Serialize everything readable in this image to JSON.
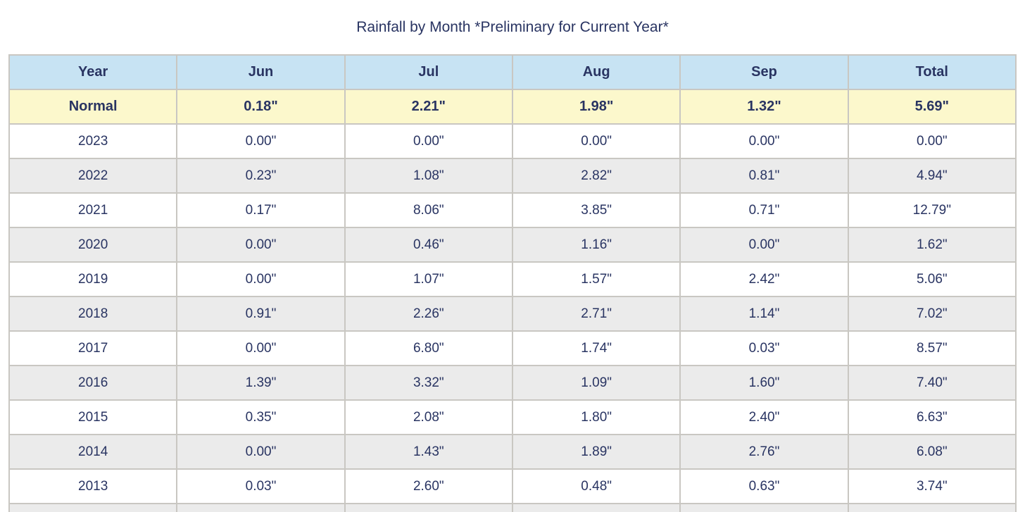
{
  "page": {
    "title": "Rainfall by Month *Preliminary for Current Year*"
  },
  "table": {
    "headers": [
      "Year",
      "Jun",
      "Jul",
      "Aug",
      "Sep",
      "Total"
    ],
    "normal_row": [
      "Normal",
      "0.18\"",
      "2.21\"",
      "1.98\"",
      "1.32\"",
      "5.69\""
    ],
    "rows": [
      [
        "2023",
        "0.00\"",
        "0.00\"",
        "0.00\"",
        "0.00\"",
        "0.00\""
      ],
      [
        "2022",
        "0.23\"",
        "1.08\"",
        "2.82\"",
        "0.81\"",
        "4.94\""
      ],
      [
        "2021",
        "0.17\"",
        "8.06\"",
        "3.85\"",
        "0.71\"",
        "12.79\""
      ],
      [
        "2020",
        "0.00\"",
        "0.46\"",
        "1.16\"",
        "0.00\"",
        "1.62\""
      ],
      [
        "2019",
        "0.00\"",
        "1.07\"",
        "1.57\"",
        "2.42\"",
        "5.06\""
      ],
      [
        "2018",
        "0.91\"",
        "2.26\"",
        "2.71\"",
        "1.14\"",
        "7.02\""
      ],
      [
        "2017",
        "0.00\"",
        "6.80\"",
        "1.74\"",
        "0.03\"",
        "8.57\""
      ],
      [
        "2016",
        "1.39\"",
        "3.32\"",
        "1.09\"",
        "1.60\"",
        "7.40\""
      ],
      [
        "2015",
        "0.35\"",
        "2.08\"",
        "1.80\"",
        "2.40\"",
        "6.63\""
      ],
      [
        "2014",
        "0.00\"",
        "1.43\"",
        "1.89\"",
        "2.76\"",
        "6.08\""
      ],
      [
        "2013",
        "0.03\"",
        "2.60\"",
        "0.48\"",
        "0.63\"",
        "3.74\""
      ]
    ]
  },
  "colors": {
    "header_bg": "#c7e3f3",
    "normal_bg": "#fcf8cc",
    "alt_row_bg": "#ebebeb",
    "row_bg": "#ffffff",
    "text": "#293462",
    "border": "#c9c7c2"
  },
  "chart_data": {
    "type": "table",
    "title": "Rainfall by Month *Preliminary for Current Year*",
    "columns": [
      "Year",
      "Jun",
      "Jul",
      "Aug",
      "Sep",
      "Total"
    ],
    "units": "inches",
    "rows": [
      [
        "Normal",
        0.18,
        2.21,
        1.98,
        1.32,
        5.69
      ],
      [
        "2023",
        0.0,
        0.0,
        0.0,
        0.0,
        0.0
      ],
      [
        "2022",
        0.23,
        1.08,
        2.82,
        0.81,
        4.94
      ],
      [
        "2021",
        0.17,
        8.06,
        3.85,
        0.71,
        12.79
      ],
      [
        "2020",
        0.0,
        0.46,
        1.16,
        0.0,
        1.62
      ],
      [
        "2019",
        0.0,
        1.07,
        1.57,
        2.42,
        5.06
      ],
      [
        "2018",
        0.91,
        2.26,
        2.71,
        1.14,
        7.02
      ],
      [
        "2017",
        0.0,
        6.8,
        1.74,
        0.03,
        8.57
      ],
      [
        "2016",
        1.39,
        3.32,
        1.09,
        1.6,
        7.4
      ],
      [
        "2015",
        0.35,
        2.08,
        1.8,
        2.4,
        6.63
      ],
      [
        "2014",
        0.0,
        1.43,
        1.89,
        2.76,
        6.08
      ],
      [
        "2013",
        0.03,
        2.6,
        0.48,
        0.63,
        3.74
      ]
    ]
  }
}
